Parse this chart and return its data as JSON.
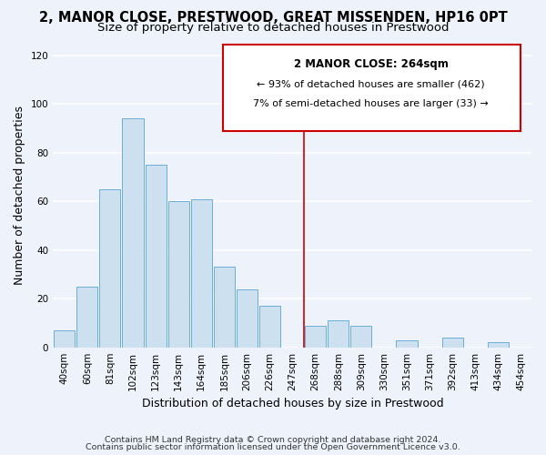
{
  "title": "2, MANOR CLOSE, PRESTWOOD, GREAT MISSENDEN, HP16 0PT",
  "subtitle": "Size of property relative to detached houses in Prestwood",
  "xlabel": "Distribution of detached houses by size in Prestwood",
  "ylabel": "Number of detached properties",
  "bar_labels": [
    "40sqm",
    "60sqm",
    "81sqm",
    "102sqm",
    "123sqm",
    "143sqm",
    "164sqm",
    "185sqm",
    "206sqm",
    "226sqm",
    "247sqm",
    "268sqm",
    "288sqm",
    "309sqm",
    "330sqm",
    "351sqm",
    "371sqm",
    "392sqm",
    "413sqm",
    "434sqm",
    "454sqm"
  ],
  "bar_values": [
    7,
    25,
    65,
    94,
    75,
    60,
    61,
    33,
    24,
    17,
    0,
    9,
    11,
    9,
    0,
    3,
    0,
    4,
    0,
    2,
    0
  ],
  "bar_color": "#cce0f0",
  "bar_edge_color": "#6aaed6",
  "vline_color": "#cc0000",
  "annotation_title": "2 MANOR CLOSE: 264sqm",
  "annotation_line1": "← 93% of detached houses are smaller (462)",
  "annotation_line2": "7% of semi-detached houses are larger (33) →",
  "annotation_box_color": "#ffffff",
  "annotation_box_edge": "#cc0000",
  "ylim": [
    0,
    125
  ],
  "yticks": [
    0,
    20,
    40,
    60,
    80,
    100,
    120
  ],
  "footnote1": "Contains HM Land Registry data © Crown copyright and database right 2024.",
  "footnote2": "Contains public sector information licensed under the Open Government Licence v3.0.",
  "bg_color": "#eef2fb",
  "grid_color": "#ffffff",
  "title_fontsize": 10.5,
  "subtitle_fontsize": 9.5,
  "axis_label_fontsize": 9,
  "tick_fontsize": 7.5,
  "footnote_fontsize": 6.8,
  "vline_bar_index": 11
}
